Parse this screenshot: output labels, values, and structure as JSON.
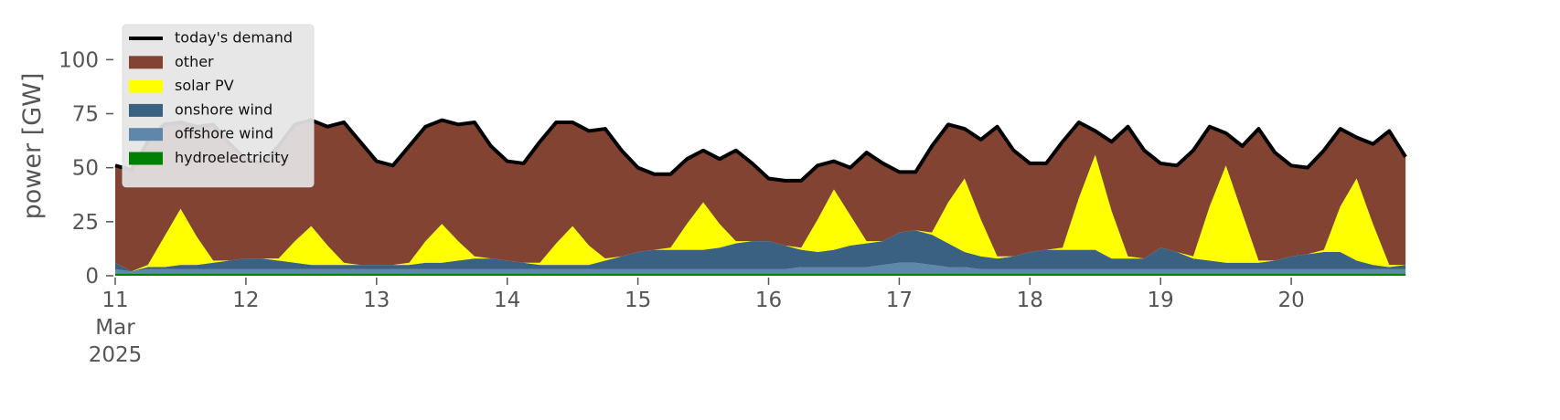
{
  "chart_data": {
    "type": "stacked-area",
    "ylabel": "power [GW]",
    "x": [
      "2025-03-11 00:00",
      "2025-03-11 03:00",
      "2025-03-11 06:00",
      "2025-03-11 09:00",
      "2025-03-11 12:00",
      "2025-03-11 15:00",
      "2025-03-11 18:00",
      "2025-03-11 21:00",
      "2025-03-12 00:00",
      "2025-03-12 03:00",
      "2025-03-12 06:00",
      "2025-03-12 09:00",
      "2025-03-12 12:00",
      "2025-03-12 15:00",
      "2025-03-12 18:00",
      "2025-03-12 21:00",
      "2025-03-13 00:00",
      "2025-03-13 03:00",
      "2025-03-13 06:00",
      "2025-03-13 09:00",
      "2025-03-13 12:00",
      "2025-03-13 15:00",
      "2025-03-13 18:00",
      "2025-03-13 21:00",
      "2025-03-14 00:00",
      "2025-03-14 03:00",
      "2025-03-14 06:00",
      "2025-03-14 09:00",
      "2025-03-14 12:00",
      "2025-03-14 15:00",
      "2025-03-14 18:00",
      "2025-03-14 21:00",
      "2025-03-15 00:00",
      "2025-03-15 03:00",
      "2025-03-15 06:00",
      "2025-03-15 09:00",
      "2025-03-15 12:00",
      "2025-03-15 15:00",
      "2025-03-15 18:00",
      "2025-03-15 21:00",
      "2025-03-16 00:00",
      "2025-03-16 03:00",
      "2025-03-16 06:00",
      "2025-03-16 09:00",
      "2025-03-16 12:00",
      "2025-03-16 15:00",
      "2025-03-16 18:00",
      "2025-03-16 21:00",
      "2025-03-17 00:00",
      "2025-03-17 03:00",
      "2025-03-17 06:00",
      "2025-03-17 09:00",
      "2025-03-17 12:00",
      "2025-03-17 15:00",
      "2025-03-17 18:00",
      "2025-03-17 21:00",
      "2025-03-18 00:00",
      "2025-03-18 03:00",
      "2025-03-18 06:00",
      "2025-03-18 09:00",
      "2025-03-18 12:00",
      "2025-03-18 15:00",
      "2025-03-18 18:00",
      "2025-03-18 21:00",
      "2025-03-19 00:00",
      "2025-03-19 03:00",
      "2025-03-19 06:00",
      "2025-03-19 09:00",
      "2025-03-19 12:00",
      "2025-03-19 15:00",
      "2025-03-19 18:00",
      "2025-03-19 21:00",
      "2025-03-20 00:00",
      "2025-03-20 03:00",
      "2025-03-20 06:00",
      "2025-03-20 09:00",
      "2025-03-20 12:00",
      "2025-03-20 15:00",
      "2025-03-20 18:00",
      "2025-03-20 21:00"
    ],
    "xlim": [
      "2025-03-11 00:00",
      "2025-03-21 00:00"
    ],
    "xticks": [
      {
        "value": "2025-03-11 00:00",
        "label": "11\nMar\n2025"
      },
      {
        "value": "2025-03-12 00:00",
        "label": "12"
      },
      {
        "value": "2025-03-13 00:00",
        "label": "13"
      },
      {
        "value": "2025-03-14 00:00",
        "label": "14"
      },
      {
        "value": "2025-03-15 00:00",
        "label": "15"
      },
      {
        "value": "2025-03-16 00:00",
        "label": "16"
      },
      {
        "value": "2025-03-17 00:00",
        "label": "17"
      },
      {
        "value": "2025-03-18 00:00",
        "label": "18"
      },
      {
        "value": "2025-03-19 00:00",
        "label": "19"
      },
      {
        "value": "2025-03-20 00:00",
        "label": "20"
      }
    ],
    "ylim": [
      0,
      120
    ],
    "yticks": [
      0,
      25,
      50,
      75,
      100
    ],
    "legend": "upper left",
    "demand": {
      "name": "today's demand",
      "color": "#000000",
      "values": [
        51,
        49,
        62,
        70,
        71,
        69,
        70,
        61,
        54,
        52,
        60,
        70,
        72,
        69,
        71,
        62,
        53,
        51,
        60,
        69,
        72,
        70,
        71,
        60,
        53,
        52,
        62,
        71,
        71,
        67,
        68,
        58,
        50,
        47,
        47,
        54,
        58,
        54,
        58,
        52,
        45,
        44,
        44,
        51,
        53,
        50,
        57,
        52,
        48,
        48,
        60,
        70,
        68,
        63,
        69,
        58,
        52,
        52,
        62,
        71,
        67,
        62,
        69,
        58,
        52,
        51,
        58,
        69,
        66,
        60,
        68,
        57,
        51,
        50,
        58,
        68,
        64,
        61,
        67,
        55
      ]
    },
    "series": [
      {
        "name": "hydroelectricity",
        "color": "#008000",
        "values": [
          1,
          1,
          1,
          1,
          1,
          1,
          1,
          1,
          1,
          1,
          1,
          1,
          1,
          1,
          1,
          1,
          1,
          1,
          1,
          1,
          1,
          1,
          1,
          1,
          1,
          1,
          1,
          1,
          1,
          1,
          1,
          1,
          1,
          1,
          1,
          1,
          1,
          1,
          1,
          1,
          1,
          1,
          1,
          1,
          1,
          1,
          1,
          1,
          1,
          1,
          1,
          1,
          1,
          1,
          1,
          1,
          1,
          1,
          1,
          1,
          1,
          1,
          1,
          1,
          1,
          1,
          1,
          1,
          1,
          1,
          1,
          1,
          1,
          1,
          1,
          1,
          1,
          1,
          1,
          1
        ]
      },
      {
        "name": "offshore wind",
        "color": "#5f87aa",
        "values": [
          2,
          1,
          2,
          2,
          2,
          2,
          2,
          2,
          2,
          2,
          2,
          2,
          2,
          2,
          2,
          2,
          2,
          2,
          2,
          2,
          2,
          2,
          2,
          2,
          2,
          2,
          2,
          2,
          2,
          2,
          2,
          2,
          2,
          2,
          2,
          2,
          2,
          2,
          2,
          2,
          2,
          2,
          3,
          3,
          3,
          3,
          3,
          4,
          5,
          5,
          4,
          3,
          3,
          2,
          2,
          2,
          2,
          2,
          2,
          2,
          2,
          2,
          2,
          2,
          2,
          2,
          2,
          2,
          2,
          2,
          2,
          2,
          2,
          2,
          2,
          2,
          2,
          2,
          2,
          2
        ]
      },
      {
        "name": "onshore wind",
        "color": "#3b6182",
        "values": [
          3,
          0,
          1,
          1,
          2,
          2,
          3,
          4,
          5,
          5,
          4,
          3,
          2,
          2,
          2,
          2,
          2,
          2,
          2,
          3,
          3,
          4,
          5,
          5,
          4,
          3,
          2,
          2,
          2,
          2,
          4,
          6,
          8,
          9,
          9,
          9,
          9,
          10,
          12,
          13,
          13,
          11,
          8,
          7,
          8,
          10,
          11,
          11,
          14,
          15,
          14,
          11,
          7,
          6,
          5,
          6,
          8,
          9,
          9,
          9,
          9,
          5,
          5,
          5,
          10,
          8,
          5,
          4,
          3,
          3,
          3,
          4,
          6,
          7,
          8,
          8,
          4,
          2,
          1,
          2
        ]
      },
      {
        "name": "solar PV",
        "color": "#ffff00",
        "values": [
          0,
          0,
          1,
          14,
          26,
          13,
          1,
          0,
          0,
          0,
          1,
          10,
          18,
          9,
          1,
          0,
          0,
          0,
          1,
          10,
          18,
          9,
          1,
          0,
          0,
          0,
          1,
          10,
          18,
          9,
          1,
          0,
          0,
          0,
          1,
          12,
          22,
          11,
          1,
          0,
          0,
          0,
          1,
          15,
          28,
          14,
          1,
          0,
          0,
          0,
          1,
          19,
          34,
          17,
          1,
          0,
          0,
          0,
          1,
          24,
          44,
          22,
          1,
          0,
          0,
          0,
          1,
          25,
          45,
          23,
          1,
          0,
          0,
          0,
          1,
          21,
          38,
          19,
          1,
          0
        ]
      },
      {
        "name": "other",
        "color": "#834333",
        "values": [
          45,
          47,
          57,
          52,
          40,
          51,
          63,
          54,
          46,
          44,
          52,
          54,
          49,
          55,
          65,
          57,
          48,
          46,
          54,
          53,
          48,
          54,
          62,
          52,
          46,
          46,
          56,
          56,
          48,
          53,
          60,
          49,
          39,
          35,
          34,
          30,
          24,
          30,
          42,
          36,
          29,
          30,
          31,
          25,
          13,
          22,
          41,
          36,
          28,
          27,
          40,
          36,
          23,
          37,
          60,
          49,
          41,
          40,
          49,
          35,
          11,
          32,
          60,
          50,
          39,
          40,
          49,
          37,
          15,
          31,
          61,
          50,
          42,
          40,
          46,
          36,
          19,
          37,
          62,
          50
        ]
      }
    ]
  }
}
